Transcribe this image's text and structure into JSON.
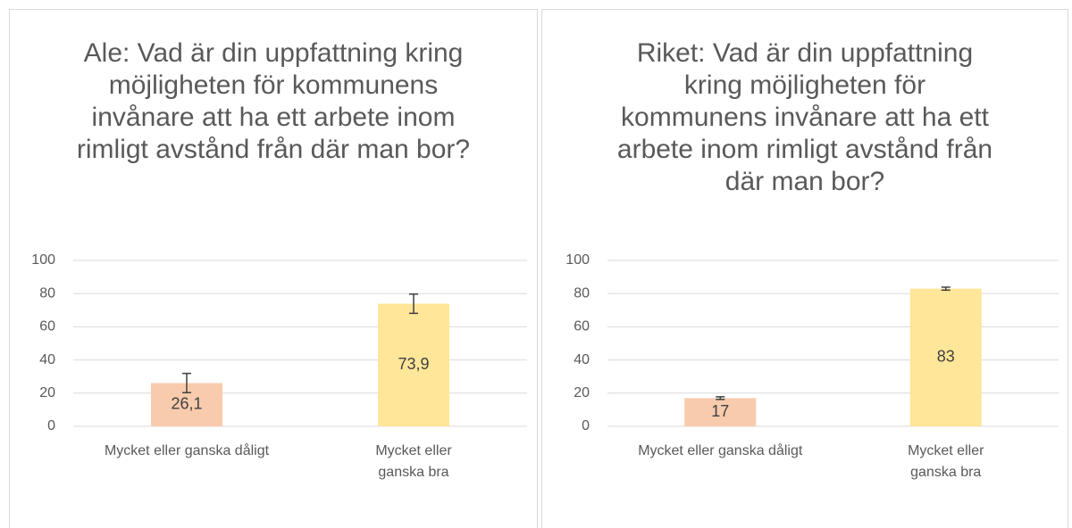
{
  "chart_data": [
    {
      "type": "bar",
      "title": "Ale: Vad är din uppfattning kring möjligheten för kommunens invånare att ha ett arbete inom rimligt avstånd från där man bor?",
      "categories": [
        "Mycket eller ganska dåligt",
        "Mycket eller ganska bra"
      ],
      "values": [
        26.1,
        73.9
      ],
      "value_labels": [
        "26,1",
        "73,9"
      ],
      "errors": [
        5.8,
        5.8
      ],
      "colors": [
        "#f8cbad",
        "#ffe699"
      ],
      "ylim": [
        0,
        100
      ],
      "yticks": [
        0,
        20,
        40,
        60,
        80,
        100
      ],
      "grid": true
    },
    {
      "type": "bar",
      "title": "Riket: Vad är din uppfattning kring möjligheten för kommunens invånare att ha ett arbete inom rimligt avstånd från där man bor?",
      "categories": [
        "Mycket eller ganska dåligt",
        "Mycket eller ganska bra"
      ],
      "values": [
        17,
        83
      ],
      "value_labels": [
        "17",
        "83"
      ],
      "errors": [
        0.8,
        0.9
      ],
      "colors": [
        "#f8cbad",
        "#ffe699"
      ],
      "ylim": [
        0,
        100
      ],
      "yticks": [
        0,
        20,
        40,
        60,
        80,
        100
      ],
      "grid": true
    }
  ]
}
